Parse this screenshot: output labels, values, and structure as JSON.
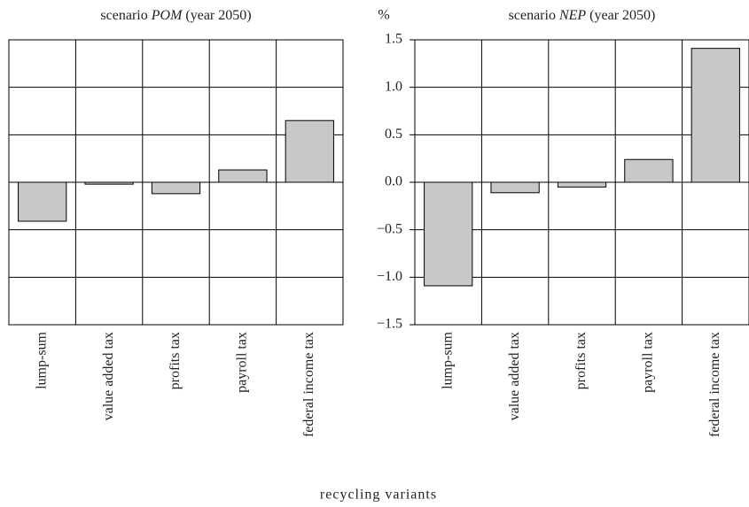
{
  "chart_data": [
    {
      "type": "bar",
      "title": [
        "scenario ",
        "POM",
        " (year 2050)"
      ],
      "categories": [
        "lump-sum",
        "value added tax",
        "profits tax",
        "payroll tax",
        "federal income tax"
      ],
      "values": [
        -0.41,
        -0.02,
        -0.12,
        0.13,
        0.65
      ],
      "color": "#c8c8c8",
      "ylim": [
        -1.5,
        1.5
      ],
      "yticks": [
        -1.5,
        -1.0,
        -0.5,
        0.0,
        0.5,
        1.0,
        1.5
      ],
      "grid": true
    },
    {
      "type": "bar",
      "title": [
        "scenario ",
        "NEP",
        " (year 2050)"
      ],
      "categories": [
        "lump-sum",
        "value added tax",
        "profits tax",
        "payroll tax",
        "federal income tax"
      ],
      "values": [
        -1.09,
        -0.11,
        -0.05,
        0.24,
        1.41
      ],
      "color": "#c8c8c8",
      "ylim": [
        -1.5,
        1.5
      ],
      "yticks": [
        {
          "value": -1.5,
          "label": "−1.5"
        },
        {
          "value": -1.0,
          "label": "−1.0"
        },
        {
          "value": -0.5,
          "label": "−0.5"
        },
        {
          "value": 0.0,
          "label": "0.0"
        },
        {
          "value": 0.5,
          "label": "0.5"
        },
        {
          "value": 1.0,
          "label": "1.0"
        },
        {
          "value": 1.5,
          "label": "1.5"
        }
      ],
      "grid": true
    }
  ],
  "y_label": "%",
  "x_label": "recycling variants"
}
